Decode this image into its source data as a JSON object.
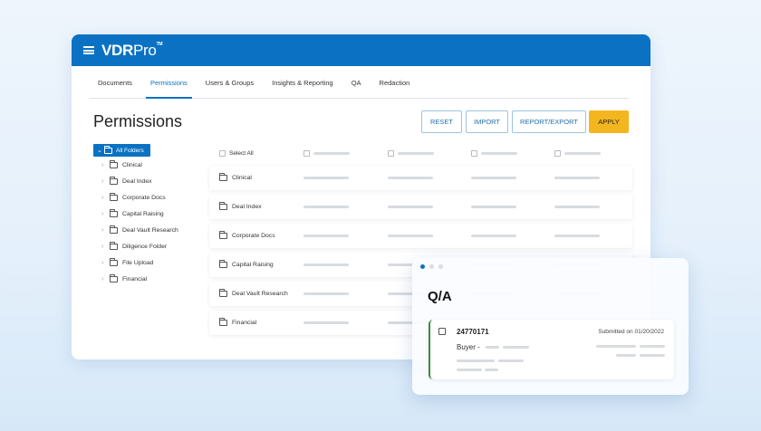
{
  "app": {
    "logo_bold": "VDR",
    "logo_light": "Pro",
    "logo_tm": "TM"
  },
  "tabs": [
    {
      "label": "Documents"
    },
    {
      "label": "Permissions",
      "active": true
    },
    {
      "label": "Users & Groups"
    },
    {
      "label": "Insights & Reporting"
    },
    {
      "label": "QA"
    },
    {
      "label": "Redaction"
    }
  ],
  "page_title": "Permissions",
  "buttons": {
    "reset": "RESET",
    "import": "IMPORT",
    "report_export": "REPORT/EXPORT",
    "apply": "APPLY"
  },
  "tree": {
    "root": "All Folders",
    "items": [
      "Clinical",
      "Deal Index",
      "Corporate Docs",
      "Capital Raising",
      "Deal Vault Research",
      "Diligence Folder",
      "File Upload",
      "Financial"
    ]
  },
  "table": {
    "select_all": "Select All",
    "rows": [
      "Clinical",
      "Deal Index",
      "Corporate Docs",
      "Capital Raising",
      "Deal Vault Research",
      "Financial"
    ]
  },
  "qa": {
    "title": "Q/A",
    "id": "24770171",
    "buyer": "Buyer -",
    "submitted": "Submitted on 01/20/2022"
  },
  "colors": {
    "brand": "#0b72c3",
    "apply": "#f3b61f",
    "qa_accent": "#3d8a3a"
  }
}
